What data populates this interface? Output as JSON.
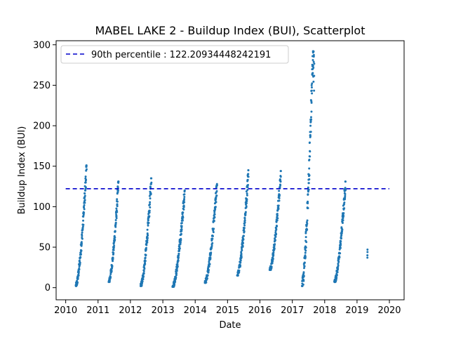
{
  "chart_data": {
    "type": "scatter",
    "title": "MABEL LAKE 2 - Buildup Index (BUI), Scatterplot",
    "xlabel": "Date",
    "ylabel": "Buildup Index (BUI)",
    "xlim": [
      "2009-09-15",
      "2020-06-15"
    ],
    "ylim": [
      -15,
      305
    ],
    "xticks": [
      "2010",
      "2011",
      "2012",
      "2013",
      "2014",
      "2015",
      "2016",
      "2017",
      "2018",
      "2019",
      "2020"
    ],
    "yticks": [
      0,
      50,
      100,
      150,
      200,
      250,
      300
    ],
    "grid": false,
    "legend_position": "top-left",
    "colors": {
      "points": "#1f77b4",
      "reference_line": "#0000cc"
    },
    "reference_line": {
      "label": "90th percentile : 122.20934448242191",
      "y": 122.20934448242191,
      "x_start": "2010-01-01",
      "x_end": "2019-12-31",
      "style": "dashed"
    },
    "seasons": [
      {
        "start": "2010-04-25",
        "end": "2010-08-25",
        "min": 2,
        "max": 151,
        "peak_frac": 1.0
      },
      {
        "start": "2011-05-01",
        "end": "2011-08-20",
        "min": 7,
        "max": 131,
        "peak_frac": 1.0
      },
      {
        "start": "2012-04-25",
        "end": "2012-08-25",
        "min": 2,
        "max": 135,
        "peak_frac": 1.0
      },
      {
        "start": "2013-04-20",
        "end": "2013-09-05",
        "min": 1,
        "max": 120,
        "peak_frac": 1.0
      },
      {
        "start": "2014-04-20",
        "end": "2014-09-05",
        "min": 6,
        "max": 128,
        "peak_frac": 1.0
      },
      {
        "start": "2015-04-20",
        "end": "2015-08-25",
        "min": 15,
        "max": 145,
        "peak_frac": 1.0
      },
      {
        "start": "2016-04-20",
        "end": "2016-08-25",
        "min": 22,
        "max": 144,
        "peak_frac": 1.0
      },
      {
        "start": "2017-04-20",
        "end": "2017-09-05",
        "min": 2,
        "max": 292,
        "peak_frac": 0.9
      },
      {
        "start": "2018-04-20",
        "end": "2018-08-25",
        "min": 7,
        "max": 131,
        "peak_frac": 1.0
      }
    ],
    "extra_points": [
      {
        "date": "2019-04-28",
        "value": 37
      },
      {
        "date": "2019-04-28",
        "value": 40
      },
      {
        "date": "2019-04-29",
        "value": 44
      },
      {
        "date": "2019-04-29",
        "value": 47
      }
    ]
  }
}
